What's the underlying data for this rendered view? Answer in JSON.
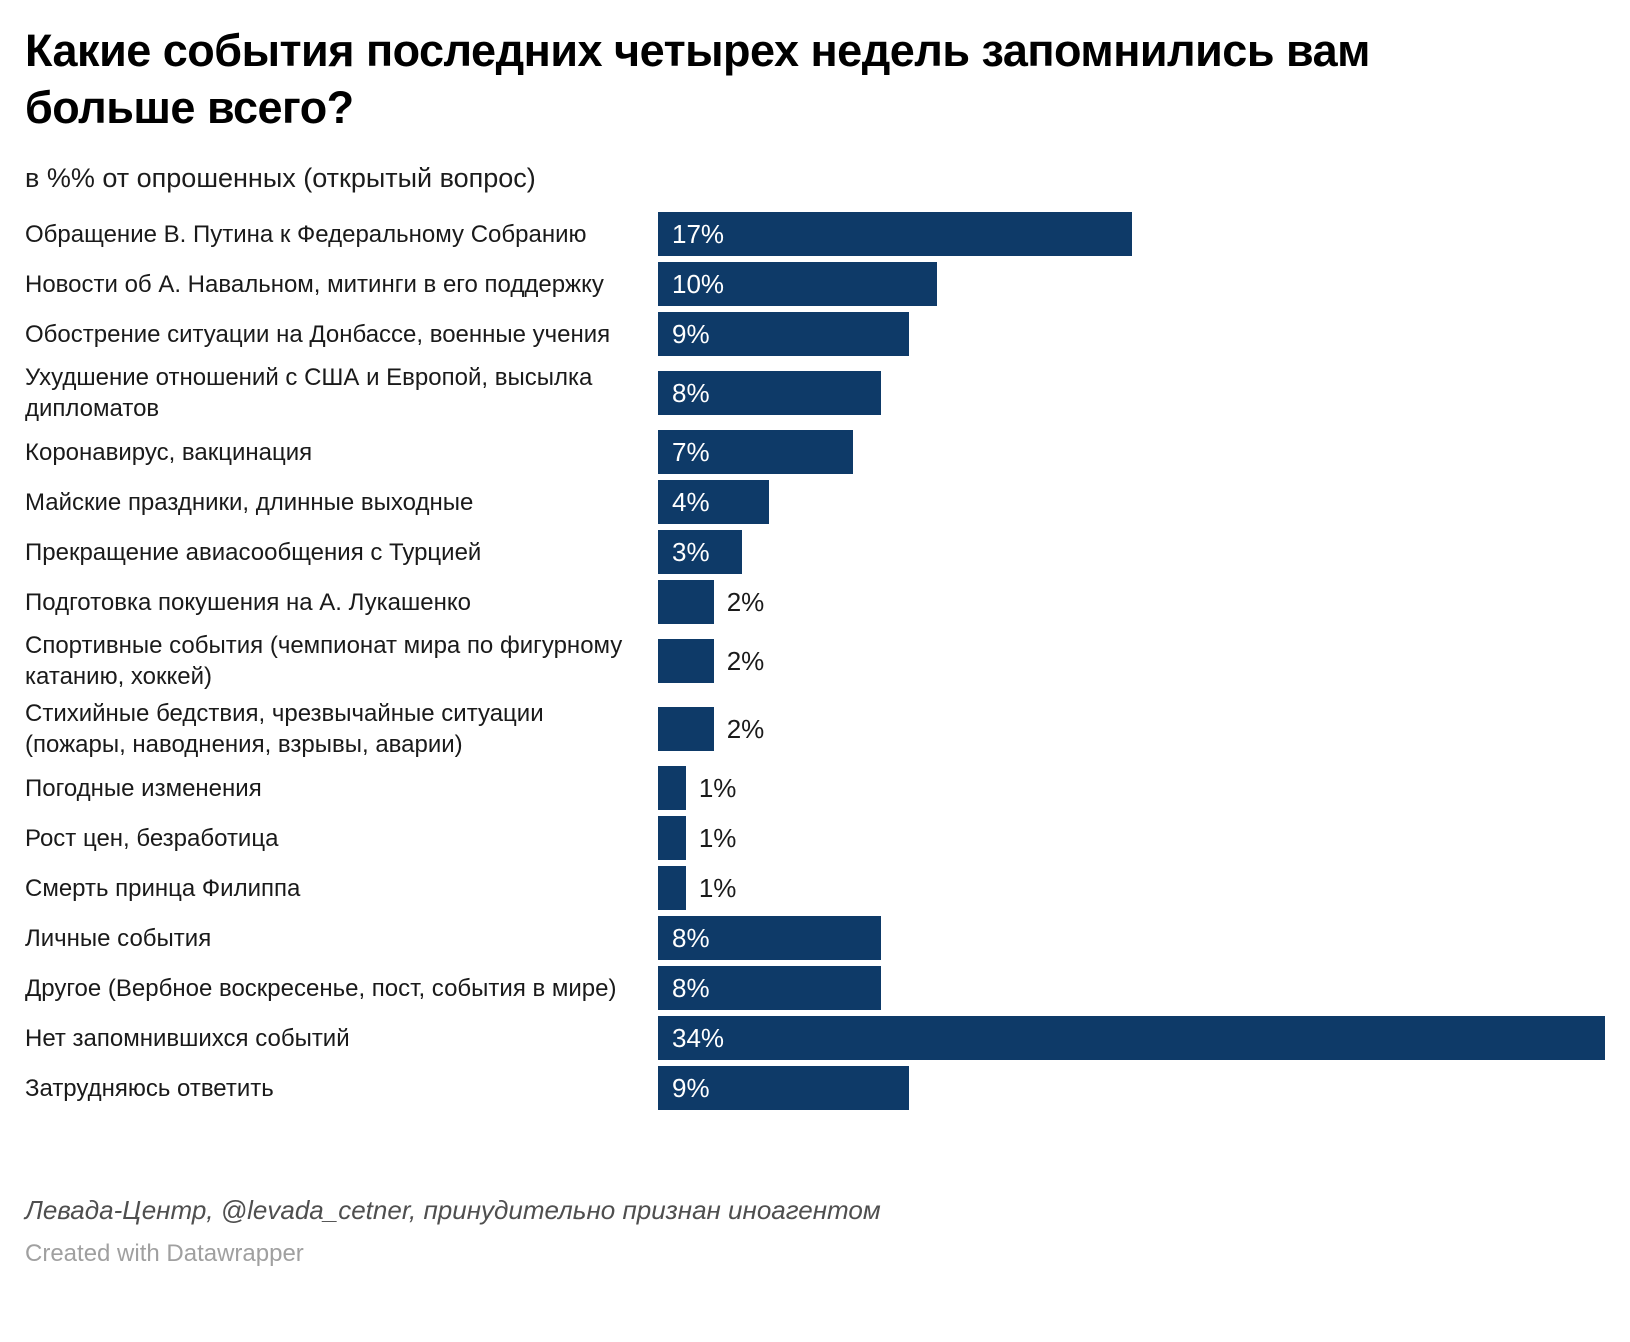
{
  "header": {
    "title": "Какие события последних четырех недель запомнились вам больше всего?",
    "subtitle": "в %% от опрошенных (открытый вопрос)"
  },
  "footer": {
    "source": "Левада-Центр, @levada_cetner, принудительно признан иноагентом",
    "attribution": "Created with Datawrapper"
  },
  "colors": {
    "bar": "#0e3a68",
    "value_inside": "#ffffff",
    "value_outside": "#1a1a1a",
    "title": "#000000"
  },
  "chart_data": {
    "type": "bar",
    "orientation": "horizontal",
    "title": "Какие события последних четырех недель запомнились вам больше всего?",
    "subtitle": "в %% от опрошенных (открытый вопрос)",
    "unit": "%",
    "max_value": 34,
    "inside_label_threshold": 3,
    "grid": false,
    "legend": false,
    "categories": [
      "Обращение В. Путина к Федеральному Собранию",
      "Новости об А. Навальном, митинги в его поддержку",
      "Обострение ситуации на Донбассе, военные учения",
      "Ухудшение отношений с США и Европой, высылка дипломатов",
      "Коронавирус, вакцинация",
      "Майские праздники, длинные выходные",
      "Прекращение авиасообщения с Турцией",
      "Подготовка покушения на А. Лукашенко",
      "Спортивные события (чемпионат мира по фигурному катанию, хоккей)",
      "Стихийные бедствия, чрезвычайные ситуации (пожары, наводнения, взрывы, аварии)",
      "Погодные изменения",
      "Рост цен, безработица",
      "Смерть принца Филиппа",
      "Личные события",
      "Другое (Вербное воскресенье, пост, события в мире)",
      "Нет запомнившихся событий",
      "Затрудняюсь ответить"
    ],
    "values": [
      17,
      10,
      9,
      8,
      7,
      4,
      3,
      2,
      2,
      2,
      1,
      1,
      1,
      8,
      8,
      34,
      9
    ],
    "value_labels": [
      "17%",
      "10%",
      "9%",
      "8%",
      "7%",
      "4%",
      "3%",
      "2%",
      "2%",
      "2%",
      "1%",
      "1%",
      "1%",
      "8%",
      "8%",
      "34%",
      "9%"
    ]
  }
}
